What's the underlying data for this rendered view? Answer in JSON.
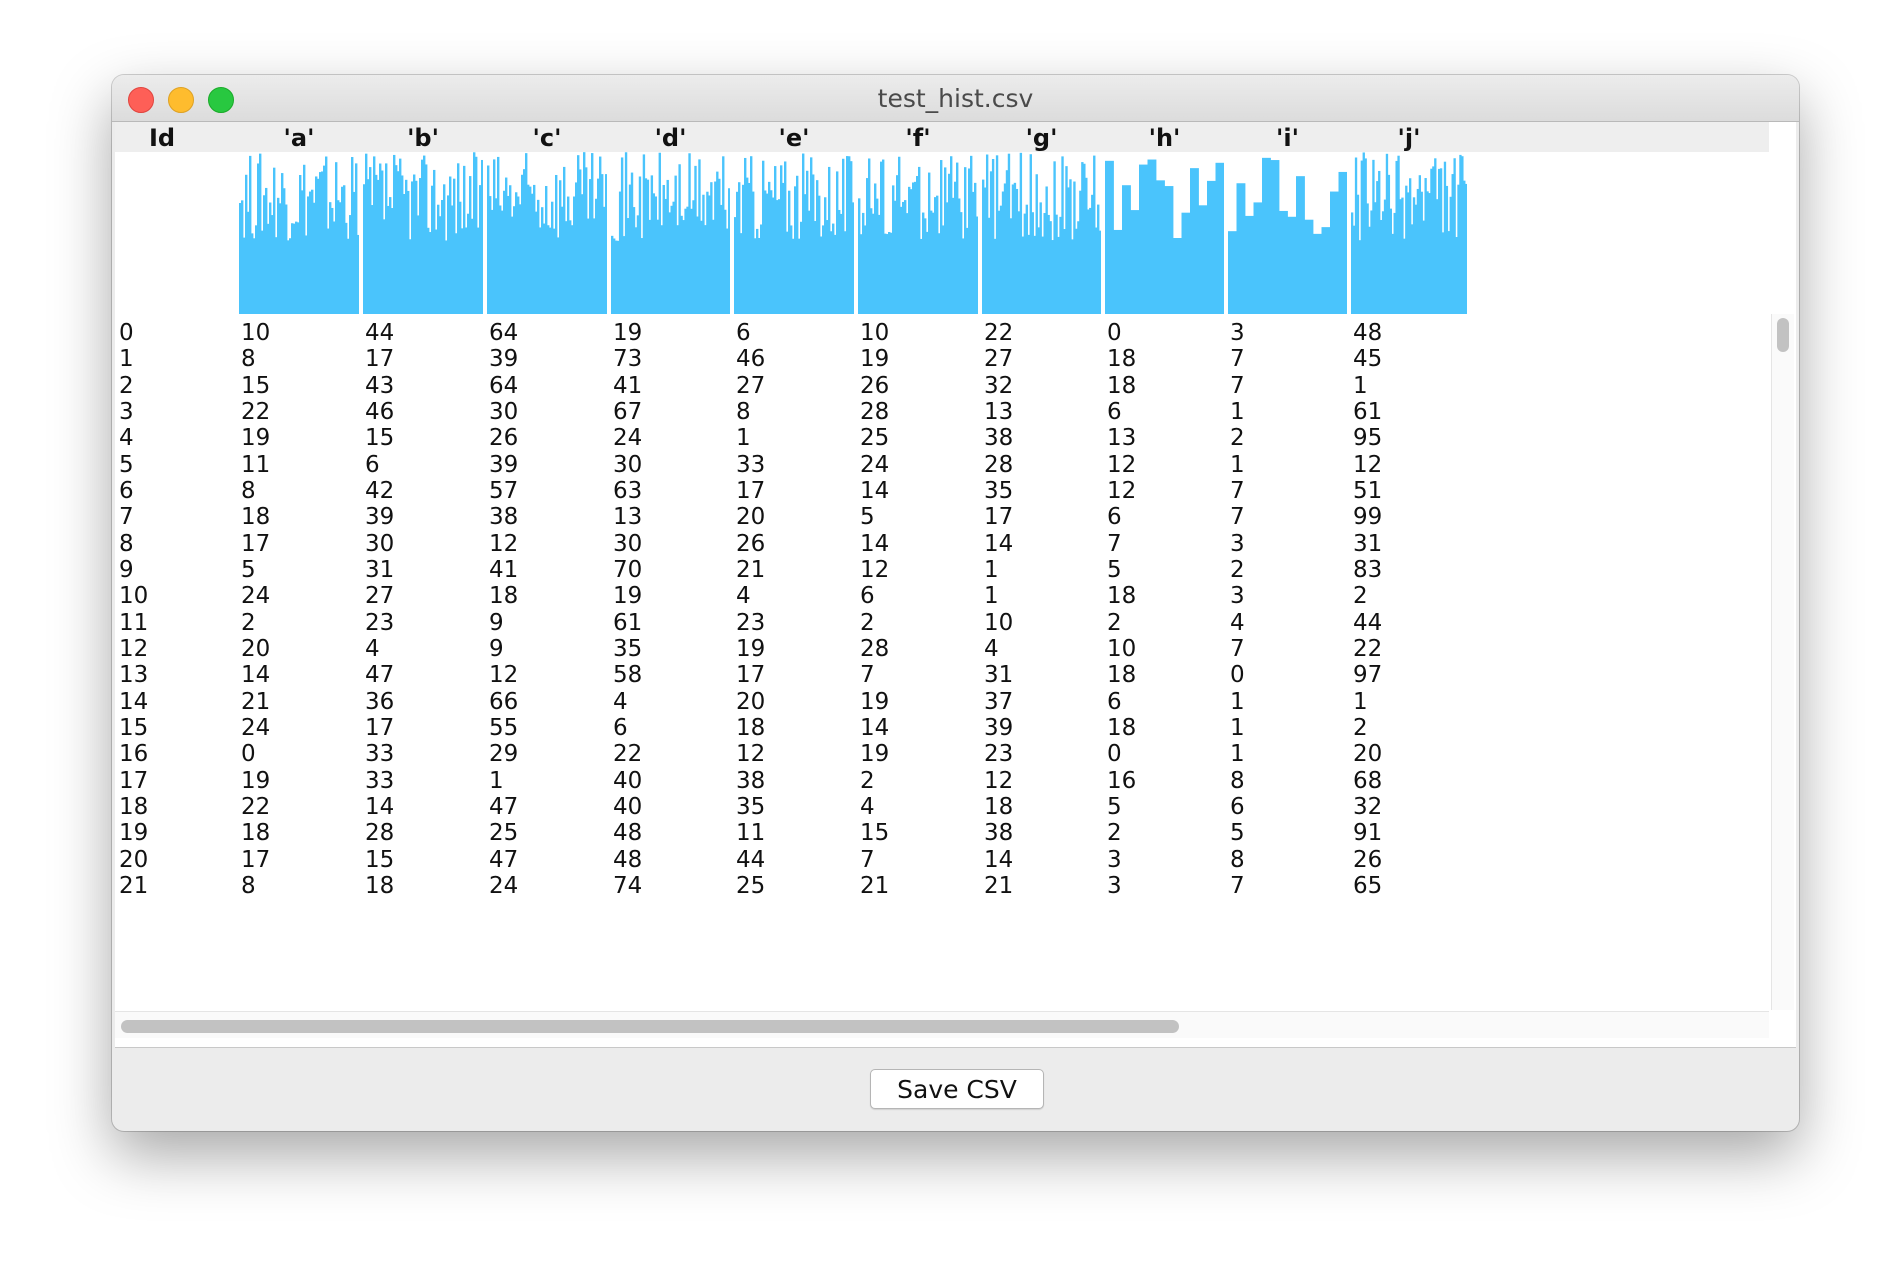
{
  "window": {
    "title": "test_hist.csv"
  },
  "columns": [
    "Id",
    "'a'",
    "'b'",
    "'c'",
    "'d'",
    "'e'",
    "'f'",
    "'g'",
    "'h'",
    "'i'",
    "'j'"
  ],
  "rows": [
    [
      "0",
      "10",
      "44",
      "64",
      "19",
      "6",
      "10",
      "22",
      "0",
      "3",
      "48"
    ],
    [
      "1",
      "8",
      "17",
      "39",
      "73",
      "46",
      "19",
      "27",
      "18",
      "7",
      "45"
    ],
    [
      "2",
      "15",
      "43",
      "64",
      "41",
      "27",
      "26",
      "32",
      "18",
      "7",
      "1"
    ],
    [
      "3",
      "22",
      "46",
      "30",
      "67",
      "8",
      "28",
      "13",
      "6",
      "1",
      "61"
    ],
    [
      "4",
      "19",
      "15",
      "26",
      "24",
      "1",
      "25",
      "38",
      "13",
      "2",
      "95"
    ],
    [
      "5",
      "11",
      "6",
      "39",
      "30",
      "33",
      "24",
      "28",
      "12",
      "1",
      "12"
    ],
    [
      "6",
      "8",
      "42",
      "57",
      "63",
      "17",
      "14",
      "35",
      "12",
      "7",
      "51"
    ],
    [
      "7",
      "18",
      "39",
      "38",
      "13",
      "20",
      "5",
      "17",
      "6",
      "7",
      "99"
    ],
    [
      "8",
      "17",
      "30",
      "12",
      "30",
      "26",
      "14",
      "14",
      "7",
      "3",
      "31"
    ],
    [
      "9",
      "5",
      "31",
      "41",
      "70",
      "21",
      "12",
      "1",
      "5",
      "2",
      "83"
    ],
    [
      "10",
      "24",
      "27",
      "18",
      "19",
      "4",
      "6",
      "1",
      "18",
      "3",
      "2"
    ],
    [
      "11",
      "2",
      "23",
      "9",
      "61",
      "23",
      "2",
      "10",
      "2",
      "4",
      "44"
    ],
    [
      "12",
      "20",
      "4",
      "9",
      "35",
      "19",
      "28",
      "4",
      "10",
      "7",
      "22"
    ],
    [
      "13",
      "14",
      "47",
      "12",
      "58",
      "17",
      "7",
      "31",
      "18",
      "0",
      "97"
    ],
    [
      "14",
      "21",
      "36",
      "66",
      "4",
      "20",
      "19",
      "37",
      "6",
      "1",
      "1"
    ],
    [
      "15",
      "24",
      "17",
      "55",
      "6",
      "18",
      "14",
      "39",
      "18",
      "1",
      "2"
    ],
    [
      "16",
      "0",
      "33",
      "29",
      "22",
      "12",
      "19",
      "23",
      "0",
      "1",
      "20"
    ],
    [
      "17",
      "19",
      "33",
      "1",
      "40",
      "38",
      "2",
      "12",
      "16",
      "8",
      "68"
    ],
    [
      "18",
      "22",
      "14",
      "47",
      "40",
      "35",
      "4",
      "18",
      "5",
      "6",
      "32"
    ],
    [
      "19",
      "18",
      "28",
      "25",
      "48",
      "11",
      "15",
      "38",
      "2",
      "5",
      "91"
    ],
    [
      "20",
      "17",
      "15",
      "47",
      "48",
      "44",
      "7",
      "14",
      "3",
      "8",
      "26"
    ],
    [
      "21",
      "8",
      "18",
      "24",
      "74",
      "25",
      "21",
      "21",
      "3",
      "7",
      "65"
    ]
  ],
  "histogram_color": "#4ac4fc",
  "footer": {
    "save_label": "Save CSV"
  }
}
